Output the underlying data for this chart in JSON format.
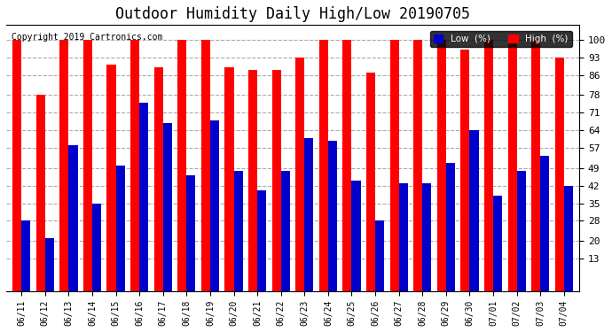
{
  "title": "Outdoor Humidity Daily High/Low 20190705",
  "copyright": "Copyright 2019 Cartronics.com",
  "categories": [
    "06/11",
    "06/12",
    "06/13",
    "06/14",
    "06/15",
    "06/16",
    "06/17",
    "06/18",
    "06/19",
    "06/20",
    "06/21",
    "06/22",
    "06/23",
    "06/24",
    "06/25",
    "06/26",
    "06/27",
    "06/28",
    "06/29",
    "06/30",
    "07/01",
    "07/02",
    "07/03",
    "07/04"
  ],
  "high_values": [
    100,
    78,
    100,
    100,
    90,
    100,
    89,
    100,
    100,
    89,
    88,
    88,
    93,
    100,
    100,
    87,
    100,
    100,
    100,
    96,
    100,
    100,
    100,
    93
  ],
  "low_values": [
    28,
    21,
    58,
    35,
    50,
    75,
    67,
    46,
    68,
    48,
    40,
    48,
    61,
    60,
    44,
    28,
    43,
    43,
    51,
    64,
    38,
    48,
    54,
    42
  ],
  "high_color": "#ff0000",
  "low_color": "#0000cc",
  "bg_color": "#ffffff",
  "plot_bg_color": "#ffffff",
  "grid_color": "#aaaaaa",
  "title_fontsize": 12,
  "ylabel_ticks": [
    13,
    20,
    28,
    35,
    42,
    49,
    57,
    64,
    71,
    78,
    86,
    93,
    100
  ],
  "ylim": [
    0,
    106
  ],
  "bar_width": 0.38
}
